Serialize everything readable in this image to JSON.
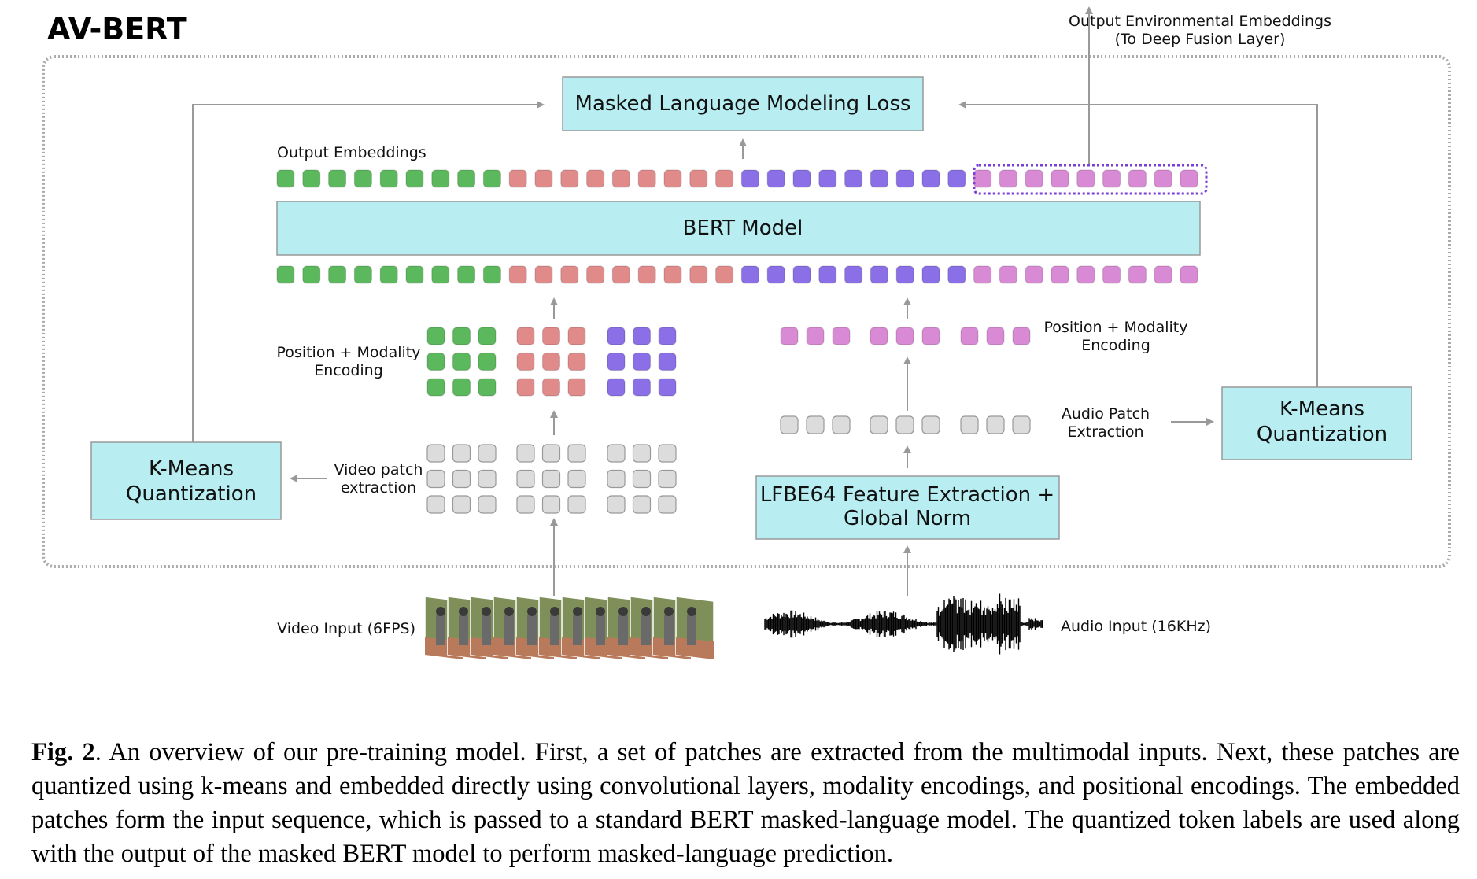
{
  "diagram": {
    "title": "AV-BERT",
    "mlm_loss": "Masked Language Modeling Loss",
    "bert_model": "BERT Model",
    "output_embeddings": "Output Embeddings",
    "output_env": [
      "Output Environmental Embeddings",
      "(To Deep Fusion Layer)"
    ],
    "kmeans_left": [
      "K-Means",
      "Quantization"
    ],
    "kmeans_right": [
      "K-Means",
      "Quantization"
    ],
    "pos_mod_left": [
      "Position + Modality",
      "Encoding"
    ],
    "pos_mod_right": [
      "Position + Modality",
      "Encoding"
    ],
    "video_patch": [
      "Video patch",
      "extraction"
    ],
    "audio_patch": [
      "Audio Patch",
      "Extraction"
    ],
    "lfbe": [
      "LFBE64 Feature Extraction +",
      "Global Norm"
    ],
    "video_input": "Video Input (6FPS)",
    "audio_input": "Audio Input (16KHz)",
    "colors": {
      "box_fill": "#b8eef2",
      "green": "#5cb85c",
      "red": "#e08a8a",
      "purple": "#8a6fe6",
      "pink": "#d98ad4",
      "gray": "#dcdcdc",
      "dotted": "#7a3fd6"
    }
  },
  "caption": {
    "label": "Fig. 2",
    "text": ". An overview of our pre-training model. First, a set of patches are extracted from the multimodal inputs. Next, these patches are quantized using k-means and embedded directly using convolutional layers, modality encodings, and positional encodings. The embedded patches form the input sequence, which is passed to a standard BERT masked-language model. The quantized token labels are used along with the output of the masked BERT model to perform masked-language prediction."
  }
}
